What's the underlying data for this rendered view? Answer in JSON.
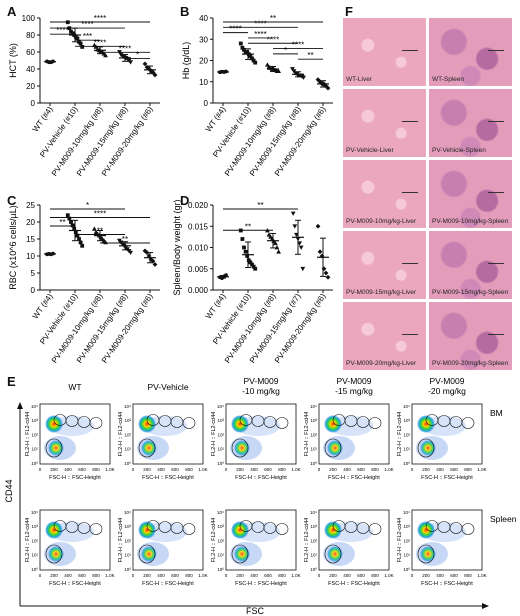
{
  "colors": {
    "wt": "#111111",
    "vehicle": "#111111",
    "marker": "#111111",
    "he_pink": "#e9a2b8",
    "he_purple": "#b96ca0"
  },
  "panels": {
    "A": {
      "letter": "A",
      "ylabel": "HCT (%)"
    },
    "B": {
      "letter": "B",
      "ylabel": "Hb (g/dL)"
    },
    "C": {
      "letter": "C",
      "ylabel": "RBC (x10^6 cells/µL)"
    },
    "D": {
      "letter": "D",
      "ylabel": "Spleen/Body weight (gr)"
    },
    "E": {
      "letter": "E"
    },
    "F": {
      "letter": "F"
    }
  },
  "chart_data": [
    {
      "panel": "A",
      "type": "scatter",
      "categories": [
        "WT (#4)",
        "PV-Vehicle (#10)",
        "PV-M009-10mg/kg (#8)",
        "PV-M009-15mg/kg (#8)",
        "PV-M009-20mg/kg (#6)"
      ],
      "ylabel": "HCT (%)",
      "ylim": [
        0,
        100
      ],
      "yticks": [
        0,
        20,
        40,
        60,
        80,
        100
      ],
      "series": [
        {
          "values": [
            [
              49,
              48,
              48,
              49
            ],
            [
              95,
              88,
              84,
              82,
              80,
              78,
              76,
              72,
              70,
              66
            ],
            [
              68,
              66,
              63,
              62,
              61,
              60,
              58,
              56
            ],
            [
              60,
              57,
              55,
              54,
              53,
              52,
              50,
              48
            ],
            [
              46,
              42,
              40,
              38,
              36,
              33
            ]
          ],
          "mean": [
            48.5,
            80,
            62,
            53,
            39
          ],
          "sd": [
            0.5,
            8,
            4,
            4,
            4.5
          ]
        }
      ],
      "significance": [
        {
          "from": 0,
          "to": 4,
          "label": "****"
        },
        {
          "from": 0,
          "to": 3,
          "label": "****"
        },
        {
          "from": 0,
          "to": 1,
          "label": "****"
        },
        {
          "from": 1,
          "to": 2,
          "label": "***"
        },
        {
          "from": 1,
          "to": 3,
          "label": "****"
        },
        {
          "from": 2,
          "to": 4,
          "label": "****"
        },
        {
          "from": 3,
          "to": 4,
          "label": "*"
        }
      ]
    },
    {
      "panel": "B",
      "type": "scatter",
      "categories": [
        "WT (#4)",
        "PV-Vehicle (#10)",
        "PV-M009-10mg/kg (#8)",
        "PV-M009-15mg/kg (#8)",
        "PV-M009-20mg/kg (#6)"
      ],
      "ylabel": "Hb (g/dL)",
      "ylim": [
        0,
        40
      ],
      "yticks": [
        0,
        10,
        20,
        30,
        40
      ],
      "series": [
        {
          "values": [
            [
              14.5,
              14.7,
              14.6,
              14.8
            ],
            [
              28,
              26,
              25,
              24,
              24,
              23,
              22,
              21,
              20,
              19
            ],
            [
              18,
              17,
              16.5,
              16,
              16,
              15.5,
              15,
              15
            ],
            [
              16,
              15,
              14,
              13.5,
              13,
              13,
              12.5,
              12
            ],
            [
              11,
              10,
              9,
              9,
              8,
              7
            ]
          ],
          "mean": [
            14.6,
            23,
            16,
            13.5,
            9
          ],
          "sd": [
            0.2,
            2.5,
            1.2,
            1.2,
            1.5
          ]
        }
      ],
      "significance": [
        {
          "from": 0,
          "to": 4,
          "label": "**"
        },
        {
          "from": 0,
          "to": 3,
          "label": "****"
        },
        {
          "from": 0,
          "to": 1,
          "label": "****"
        },
        {
          "from": 1,
          "to": 2,
          "label": "****"
        },
        {
          "from": 1,
          "to": 3,
          "label": "****"
        },
        {
          "from": 2,
          "to": 4,
          "label": "****"
        },
        {
          "from": 2,
          "to": 3,
          "label": "*"
        },
        {
          "from": 3,
          "to": 4,
          "label": "**"
        }
      ]
    },
    {
      "panel": "C",
      "type": "scatter",
      "categories": [
        "WT (#4)",
        "PV-Vehicle (#10)",
        "PV-M009-10mg/kg (#8)",
        "PV-M009-15mg/kg (#8)",
        "PV-M009-20mg/kg (#6)"
      ],
      "ylabel": "RBC (x10^6 cells/µL)",
      "ylim": [
        0,
        25
      ],
      "yticks": [
        0,
        5,
        10,
        15,
        20,
        25
      ],
      "series": [
        {
          "values": [
            [
              10.5,
              10.6,
              10.5,
              10.7
            ],
            [
              22,
              21,
              20,
              19,
              18,
              17,
              16,
              15,
              14,
              13
            ],
            [
              18,
              17,
              16.5,
              16,
              15.5,
              15,
              14.5,
              14
            ],
            [
              14.5,
              14,
              13.5,
              13,
              12.5,
              12,
              11.5,
              11
            ],
            [
              11.5,
              11,
              10,
              9,
              8.5,
              7.5
            ]
          ],
          "mean": [
            10.6,
            17.5,
            16,
            13,
            9.5
          ],
          "sd": [
            0.1,
            3,
            1.5,
            1.2,
            1.5
          ]
        }
      ],
      "significance": [
        {
          "from": 0,
          "to": 3,
          "label": "*"
        },
        {
          "from": 0,
          "to": 4,
          "label": "****"
        },
        {
          "from": 0,
          "to": 1,
          "label": "**"
        },
        {
          "from": 1,
          "to": 3,
          "label": "**"
        },
        {
          "from": 2,
          "to": 4,
          "label": "**"
        }
      ]
    },
    {
      "panel": "D",
      "type": "scatter",
      "categories": [
        "WT (#4)",
        "PV-Vehicle (#10)",
        "PV-M009-10mg/kg (#8)",
        "PV-M009-15mg/kg (#7)",
        "PV-M009-20mg/kg (#6)"
      ],
      "ylabel": "Spleen/Body weight (gr)",
      "ylim": [
        0,
        0.02
      ],
      "yticks": [
        0.0,
        0.005,
        0.01,
        0.015,
        0.02
      ],
      "ytick_labels": [
        "0.000",
        "0.005",
        "0.010",
        "0.015",
        "0.020"
      ],
      "series": [
        {
          "values": [
            [
              0.003,
              0.0028,
              0.0032,
              0.0035
            ],
            [
              0.014,
              0.012,
              0.01,
              0.009,
              0.008,
              0.007,
              0.0065,
              0.006,
              0.0055,
              0.005
            ],
            [
              0.014,
              0.013,
              0.0125,
              0.012,
              0.0115,
              0.011,
              0.01,
              0.009
            ],
            [
              0.018,
              0.015,
              0.013,
              0.012,
              0.011,
              0.01,
              0.005
            ],
            [
              0.015,
              0.009,
              0.008,
              0.005,
              0.004,
              0.003
            ]
          ],
          "mean": [
            0.0031,
            0.0083,
            0.0116,
            0.0124,
            0.0077
          ],
          "sd": [
            0.0003,
            0.003,
            0.0017,
            0.004,
            0.0045
          ]
        }
      ],
      "significance": [
        {
          "from": 0,
          "to": 3,
          "label": "**"
        },
        {
          "from": 0,
          "to": 2,
          "label": "**"
        }
      ]
    }
  ],
  "flow": {
    "columns": [
      {
        "title": "WT",
        "title2": ""
      },
      {
        "title": "PV-Vehicle",
        "title2": ""
      },
      {
        "title": "PV-M009",
        "title2": "-10 mg/kg"
      },
      {
        "title": "PV-M009",
        "title2": "-15 mg/kg"
      },
      {
        "title": "PV-M009",
        "title2": "-20 mg/kg"
      }
    ],
    "rows": [
      {
        "label": "BM"
      },
      {
        "label": "Spleen"
      }
    ],
    "y_axis_title": "CD44",
    "x_axis_title": "FSC",
    "plot_ylabel": "FL2-H :: FL2-cd44",
    "plot_xlabel": "FSC-H :: FSC-Height",
    "x_ticks": [
      "0",
      "200",
      "400",
      "600",
      "800",
      "1.0K"
    ],
    "y_ticks": [
      "10⁰",
      "10¹",
      "10²",
      "10³",
      "10⁴"
    ]
  },
  "histology": {
    "tiles": [
      {
        "label": "WT-Liver"
      },
      {
        "label": "WT-Spleen"
      },
      {
        "label": "PV-Vehicle-Liver"
      },
      {
        "label": "PV-Vehicle-Spleen"
      },
      {
        "label": "PV-M009-10mg/kg-Liver"
      },
      {
        "label": "PV-M009-10mg/kg-Spleen"
      },
      {
        "label": "PV-M009-15mg/kg-Liver"
      },
      {
        "label": "PV-M009-15mg/kg-Spleen"
      },
      {
        "label": "PV-M009-20mg/kg-Liver"
      },
      {
        "label": "PV-M009-20mg/kg-Spleen"
      }
    ]
  }
}
